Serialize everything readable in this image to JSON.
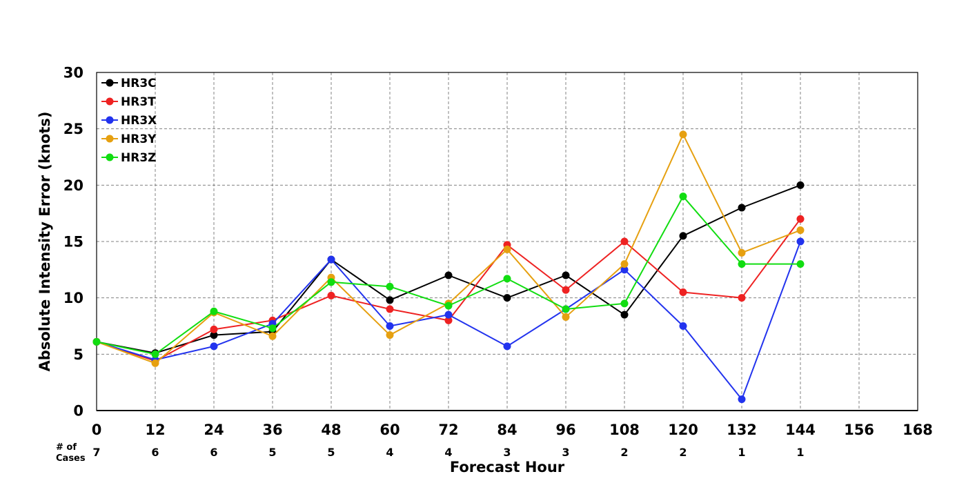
{
  "chart_data": {
    "type": "line",
    "xlabel": "Forecast Hour",
    "ylabel": "Absolute Intensity Error (knots)",
    "xlim": [
      0,
      168
    ],
    "ylim": [
      0,
      30
    ],
    "x_ticks": [
      0,
      12,
      24,
      36,
      48,
      60,
      72,
      84,
      96,
      108,
      120,
      132,
      144,
      156,
      168
    ],
    "y_ticks": [
      0,
      5,
      10,
      15,
      20,
      25,
      30
    ],
    "grid": true,
    "legend_position": "top-left",
    "cases_label_line1": "# of",
    "cases_label_line2": "Cases",
    "cases": {
      "x": [
        0,
        12,
        24,
        36,
        48,
        60,
        72,
        84,
        96,
        108,
        120,
        132,
        144
      ],
      "counts": [
        7,
        6,
        6,
        5,
        5,
        4,
        4,
        3,
        3,
        2,
        2,
        1,
        1
      ]
    },
    "x": [
      0,
      12,
      24,
      36,
      48,
      60,
      72,
      84,
      96,
      108,
      120,
      132,
      144
    ],
    "series": [
      {
        "name": "HR3C",
        "color": "#000000",
        "values": [
          6.1,
          5.1,
          6.7,
          7.0,
          13.4,
          9.8,
          12.0,
          10.0,
          12.0,
          8.5,
          15.5,
          18.0,
          20.0
        ]
      },
      {
        "name": "HR3T",
        "color": "#ee2222",
        "values": [
          6.1,
          4.4,
          7.2,
          8.0,
          10.2,
          9.0,
          8.0,
          14.7,
          10.7,
          15.0,
          10.5,
          10.0,
          17.0
        ]
      },
      {
        "name": "HR3X",
        "color": "#2233ee",
        "values": [
          6.1,
          4.5,
          5.7,
          7.7,
          13.4,
          7.5,
          8.5,
          5.7,
          9.0,
          12.5,
          7.5,
          1.0,
          15.0
        ]
      },
      {
        "name": "HR3Y",
        "color": "#e6a010",
        "values": [
          6.1,
          4.2,
          8.7,
          6.6,
          11.8,
          6.7,
          9.5,
          14.3,
          8.3,
          13.0,
          24.5,
          14.0,
          16.0
        ]
      },
      {
        "name": "HR3Z",
        "color": "#11dd11",
        "values": [
          6.1,
          5.0,
          8.8,
          7.3,
          11.4,
          11.0,
          9.3,
          11.7,
          9.0,
          9.5,
          19.0,
          13.0,
          13.0
        ]
      }
    ]
  }
}
